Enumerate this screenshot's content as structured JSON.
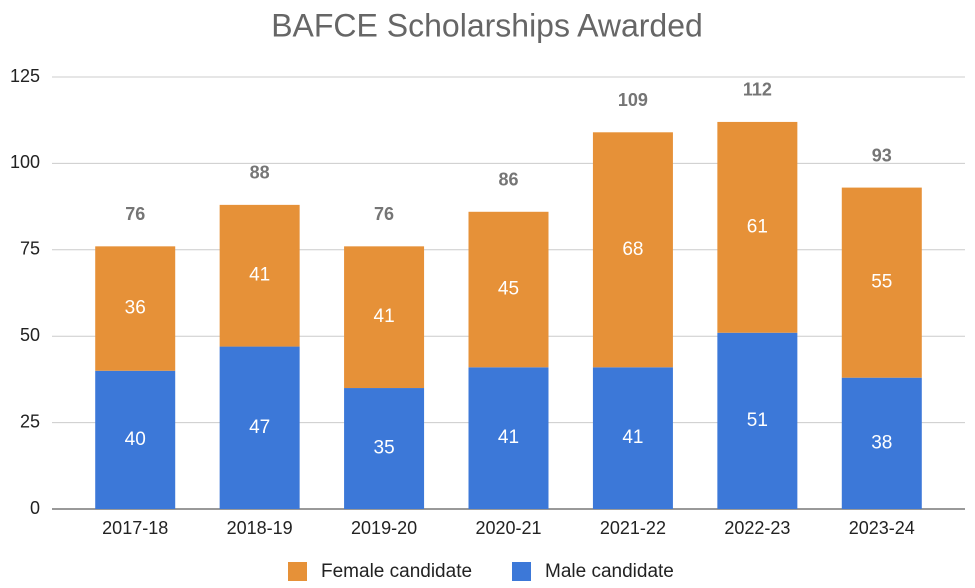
{
  "chart_data": {
    "type": "stacked_bar",
    "title": "BAFCE Scholarships Awarded",
    "categories": [
      "2017-18",
      "2018-19",
      "2019-20",
      "2020-21",
      "2021-22",
      "2022-23",
      "2023-24"
    ],
    "series": [
      {
        "name": "Female candidate",
        "color": "#e69138",
        "values": [
          36,
          41,
          41,
          45,
          68,
          61,
          55
        ]
      },
      {
        "name": "Male candidate",
        "color": "#3c78d8",
        "values": [
          40,
          47,
          35,
          41,
          41,
          51,
          38
        ]
      }
    ],
    "totals": [
      76,
      88,
      76,
      86,
      109,
      112,
      93
    ],
    "ylim": [
      0,
      125
    ],
    "yticks": [
      0,
      25,
      50,
      75,
      100,
      125
    ],
    "grid": true,
    "legend": "bottom"
  }
}
